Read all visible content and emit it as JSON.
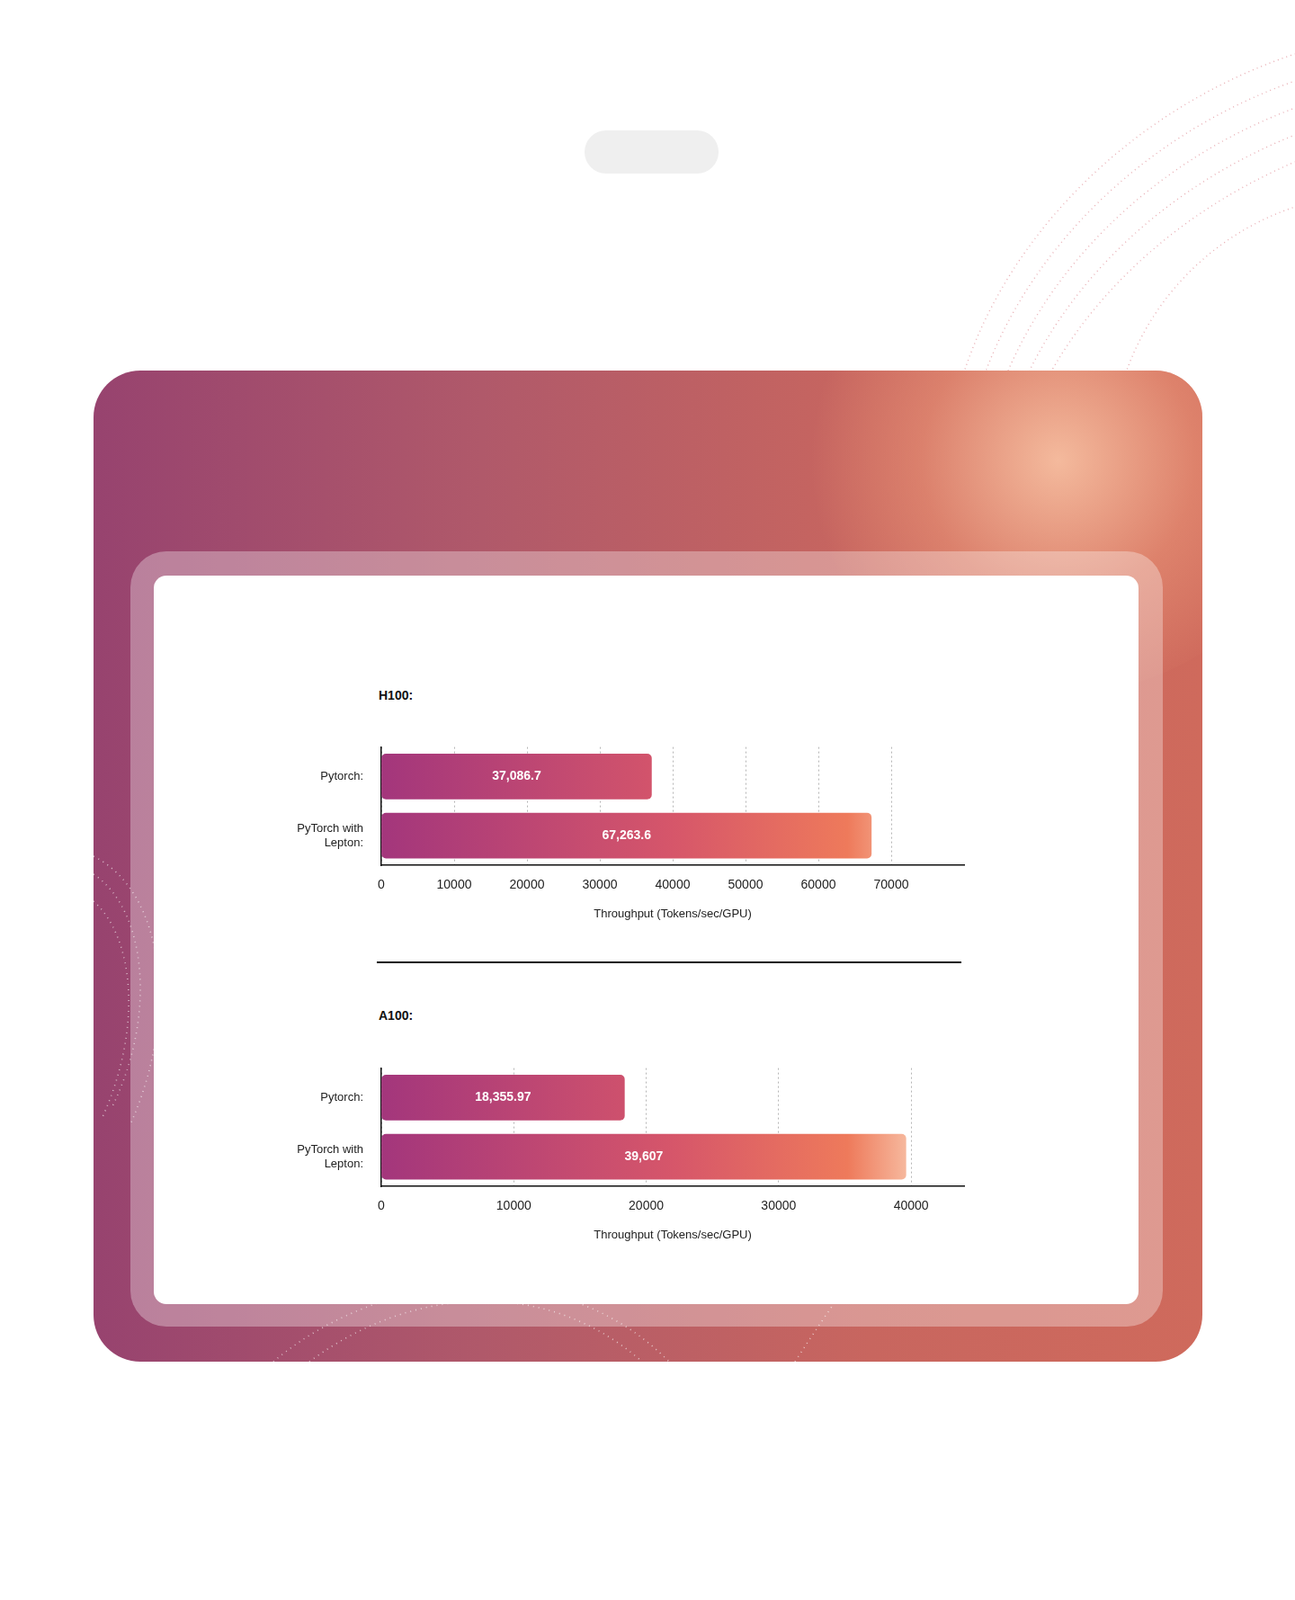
{
  "chart_data": [
    {
      "type": "bar",
      "orientation": "horizontal",
      "title": "H100:",
      "categories": [
        "Pytorch:",
        "PyTorch with Lepton:"
      ],
      "values": [
        37086.7,
        67263.6
      ],
      "value_labels": [
        "37,086.7",
        "67,263.6"
      ],
      "data_labels": true,
      "color": "#a3367c",
      "xlabel": "Throughput (Tokens/sec/GPU)",
      "xlim": [
        0,
        80000
      ],
      "xticks": [
        0,
        10000,
        20000,
        30000,
        40000,
        50000,
        60000,
        70000
      ],
      "grid": true
    },
    {
      "type": "bar",
      "orientation": "horizontal",
      "title": "A100:",
      "categories": [
        "Pytorch:",
        "PyTorch with Lepton:"
      ],
      "values": [
        18355.97,
        39607
      ],
      "value_labels": [
        "18,355.97",
        "39,607"
      ],
      "data_labels": true,
      "color": "#a3367c",
      "xlabel": "Throughput (Tokens/sec/GPU)",
      "xlim": [
        0,
        44000
      ],
      "xticks": [
        0,
        10000,
        20000,
        30000,
        40000
      ],
      "grid": true
    }
  ]
}
